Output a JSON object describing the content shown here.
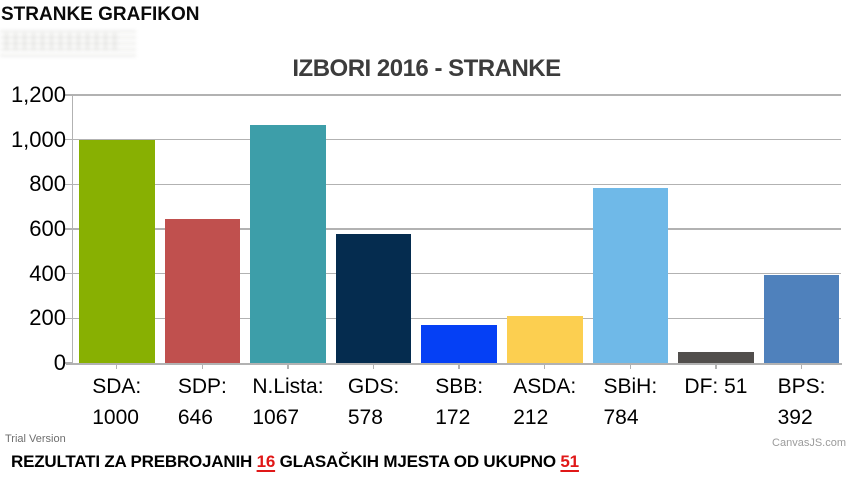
{
  "header": {
    "title": "STRANKE GRAFIKON"
  },
  "chart": {
    "watermark_left": "Trial Version",
    "watermark_right": "CanvasJS.com"
  },
  "chart_data": {
    "type": "bar",
    "title": "IZBORI 2016 - STRANKE",
    "categories": [
      "SDA",
      "SDP",
      "N.Lista",
      "GDS",
      "SBB",
      "ASDA",
      "SBiH",
      "DF",
      "BPS"
    ],
    "values": [
      1000,
      646,
      1067,
      578,
      172,
      212,
      784,
      51,
      392
    ],
    "label_lines": [
      [
        "SDA:",
        "1000"
      ],
      [
        "SDP:",
        "646"
      ],
      [
        "N.Lista:",
        "1067"
      ],
      [
        "GDS:",
        "578"
      ],
      [
        "SBB:",
        "172"
      ],
      [
        "ASDA:",
        "212"
      ],
      [
        "SBiH:",
        "784"
      ],
      [
        "DF: 51"
      ],
      [
        "BPS:",
        "392"
      ]
    ],
    "bar_colors": [
      "#88B002",
      "#C0504E",
      "#3D9EA9",
      "#052C4F",
      "#0540F5",
      "#FCCF50",
      "#6FB9E8",
      "#514E4C",
      "#4F81BC"
    ],
    "ylim": [
      0,
      1200
    ],
    "ytick_values": [
      0,
      200,
      400,
      600,
      800,
      1000,
      1200
    ],
    "ytick_labels": [
      "0",
      "200",
      "400",
      "600",
      "800",
      "1,000",
      "1,200"
    ],
    "grid": "horizontal",
    "axis_color": "#b2b2b2",
    "legend": "none",
    "xlabel": "",
    "ylabel": ""
  },
  "footer": {
    "prefix": "REZULTATI ZA PREBROJANIH ",
    "counted": "16",
    "middle": " GLASAČKIH MJESTA OD UKUPNO ",
    "total": "51",
    "highlight_color": "#E01818"
  }
}
